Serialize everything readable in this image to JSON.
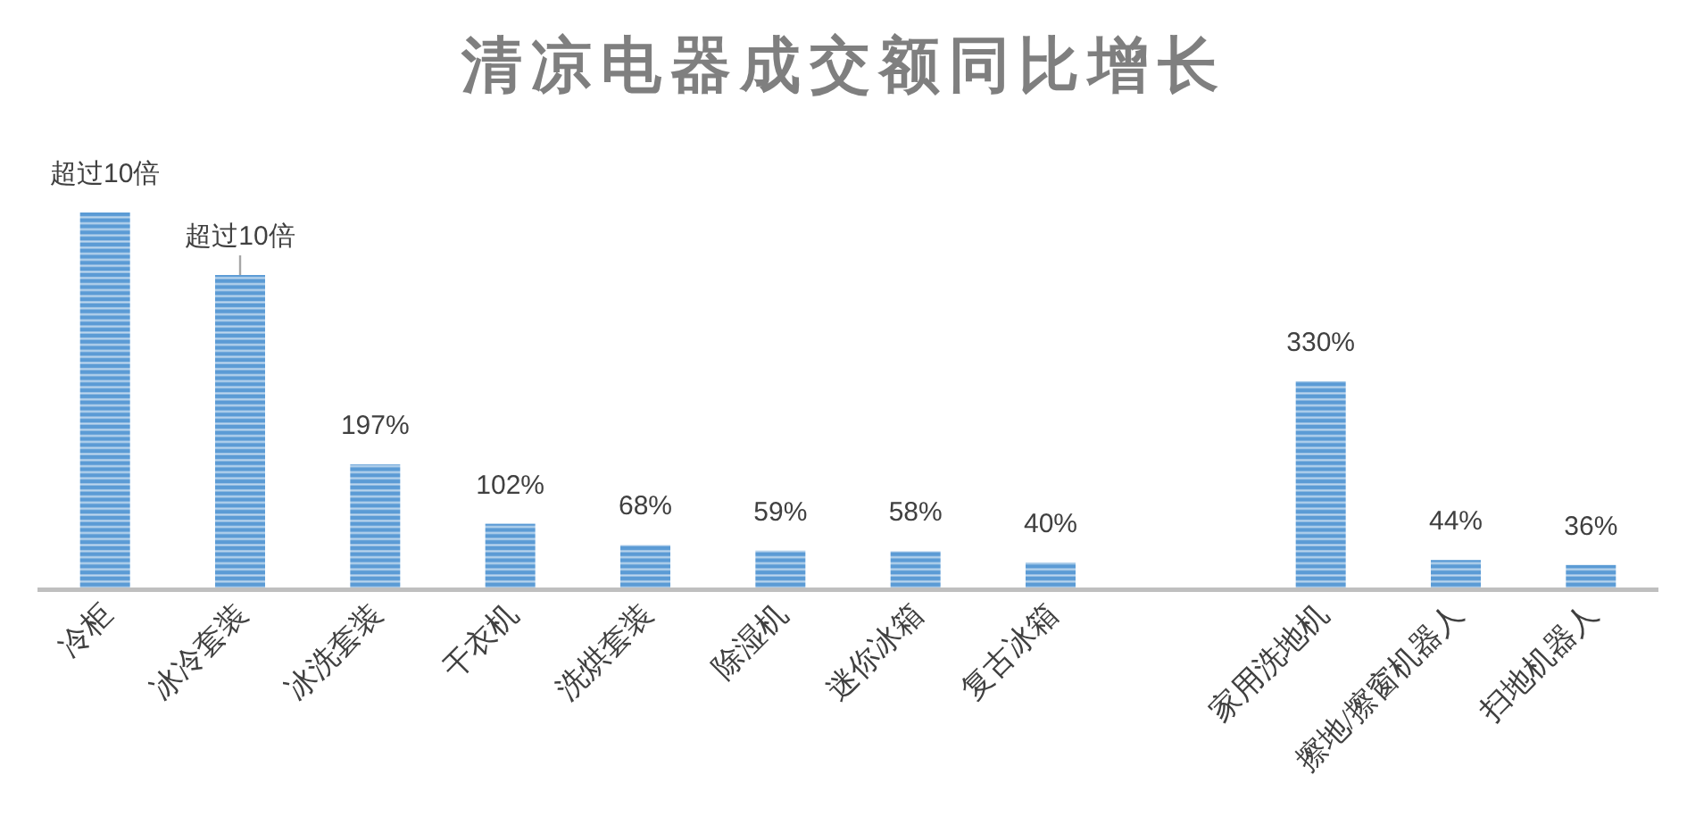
{
  "chart_data": {
    "type": "bar",
    "title": "清凉电器成交额同比增长",
    "categories": [
      "冷柜",
      "冰冷套装",
      "冰洗套装",
      "干衣机",
      "洗烘套装",
      "除湿机",
      "迷你冰箱",
      "复古冰箱",
      null,
      "家用洗地机",
      "擦地/擦窗机器人",
      "扫地机器人"
    ],
    "values": [
      600,
      500,
      197,
      102,
      68,
      59,
      58,
      40,
      null,
      330,
      44,
      36
    ],
    "value_labels": [
      "超过10倍",
      "超过10倍",
      "197%",
      "102%",
      "68%",
      "59%",
      "58%",
      "40%",
      null,
      "330%",
      "44%",
      "36%"
    ],
    "color": "#5b9bd5",
    "tick_labels": "x"
  }
}
